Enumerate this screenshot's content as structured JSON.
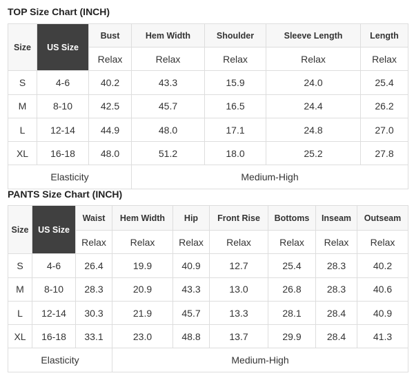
{
  "top": {
    "title": "TOP Size Chart (INCH)",
    "headers": [
      "Size",
      "US Size",
      "Bust",
      "Hem Width",
      "Shoulder",
      "Sleeve Length",
      "Length"
    ],
    "sub": "Relax",
    "rows": [
      [
        "S",
        "4-6",
        "40.2",
        "43.3",
        "15.9",
        "24.0",
        "25.4"
      ],
      [
        "M",
        "8-10",
        "42.5",
        "45.7",
        "16.5",
        "24.4",
        "26.2"
      ],
      [
        "L",
        "12-14",
        "44.9",
        "48.0",
        "17.1",
        "24.8",
        "27.0"
      ],
      [
        "XL",
        "16-18",
        "48.0",
        "51.2",
        "18.0",
        "25.2",
        "27.8"
      ]
    ],
    "elasticity_label": "Elasticity",
    "elasticity_value": "Medium-High"
  },
  "pants": {
    "title": "PANTS Size Chart (INCH)",
    "headers": [
      "Size",
      "US Size",
      "Waist",
      "Hem Width",
      "Hip",
      "Front Rise",
      "Bottoms",
      "Inseam",
      "Outseam"
    ],
    "sub": "Relax",
    "rows": [
      [
        "S",
        "4-6",
        "26.4",
        "19.9",
        "40.9",
        "12.7",
        "25.4",
        "28.3",
        "40.2"
      ],
      [
        "M",
        "8-10",
        "28.3",
        "20.9",
        "43.3",
        "13.0",
        "26.8",
        "28.3",
        "40.6"
      ],
      [
        "L",
        "12-14",
        "30.3",
        "21.9",
        "45.7",
        "13.3",
        "28.1",
        "28.4",
        "40.9"
      ],
      [
        "XL",
        "16-18",
        "33.1",
        "23.0",
        "48.8",
        "13.7",
        "29.9",
        "28.4",
        "41.3"
      ]
    ],
    "elasticity_label": "Elasticity",
    "elasticity_value": "Medium-High"
  }
}
